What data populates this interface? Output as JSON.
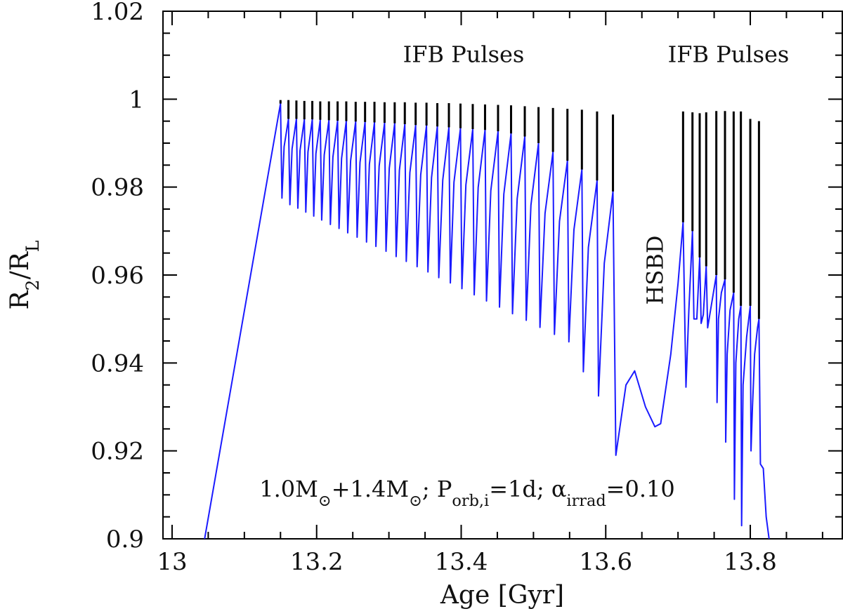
{
  "chart_data": {
    "type": "line",
    "x_label": "Age [Gyr]",
    "y_label": [
      {
        "text": "R"
      },
      {
        "text": "2",
        "sub": true
      },
      {
        "text": "/R"
      },
      {
        "text": "L",
        "sub": true
      }
    ],
    "annotations": [
      "IFB Pulses",
      "IFB Pulses",
      "HSBD"
    ],
    "note": [
      {
        "text": "1.0M"
      },
      {
        "text": "⊙",
        "sub": true
      },
      {
        "text": "+1.4M"
      },
      {
        "text": "⊙",
        "sub": true
      },
      {
        "text": "; P"
      },
      {
        "text": "orb,i",
        "sub": true
      },
      {
        "text": "=1d; "
      },
      {
        "text": "α"
      },
      {
        "text": "irrad",
        "sub": true
      },
      {
        "text": "=0.10"
      }
    ],
    "xlim": [
      12.9874,
      13.9273
    ],
    "ylim": [
      0.9,
      1.02
    ],
    "xticks": [
      13,
      13.2,
      13.4,
      13.6,
      13.8
    ],
    "yticks": [
      0.9,
      0.92,
      0.94,
      0.96,
      0.98,
      1,
      1.02
    ],
    "xminor": [
      13.05,
      13.1,
      13.15,
      13.25,
      13.3,
      13.35,
      13.45,
      13.5,
      13.55,
      13.65,
      13.7,
      13.75,
      13.85,
      13.9
    ],
    "yminor": [
      0.905,
      0.91,
      0.915,
      0.925,
      0.93,
      0.935,
      0.945,
      0.95,
      0.955,
      0.965,
      0.97,
      0.975,
      0.985,
      0.99,
      0.995,
      1.005,
      1.01,
      1.015
    ],
    "series": [
      {
        "color": "#1a1aff",
        "x": [
          13.045,
          13.15,
          13.152,
          13.155,
          13.161,
          13.163,
          13.166,
          13.172,
          13.174,
          13.177,
          13.183,
          13.185,
          13.188,
          13.194,
          13.196,
          13.199,
          13.205,
          13.207,
          13.2105,
          13.217,
          13.219,
          13.2225,
          13.229,
          13.231,
          13.2345,
          13.241,
          13.243,
          13.247,
          13.254,
          13.256,
          13.26,
          13.267,
          13.269,
          13.273,
          13.28,
          13.282,
          13.2865,
          13.294,
          13.296,
          13.3005,
          13.308,
          13.31,
          13.3145,
          13.322,
          13.324,
          13.329,
          13.337,
          13.339,
          13.344,
          13.352,
          13.354,
          13.359,
          13.367,
          13.369,
          13.3745,
          13.383,
          13.385,
          13.39,
          13.399,
          13.401,
          13.4065,
          13.416,
          13.418,
          13.4235,
          13.433,
          13.435,
          13.441,
          13.451,
          13.453,
          13.459,
          13.469,
          13.471,
          13.4775,
          13.488,
          13.49,
          13.4965,
          13.507,
          13.509,
          13.516,
          13.527,
          13.529,
          13.536,
          13.547,
          13.549,
          13.556,
          13.567,
          13.569,
          13.576,
          13.588,
          13.59,
          13.598,
          13.61,
          13.614,
          13.628,
          13.64,
          13.655,
          13.668,
          13.676,
          13.69,
          13.7,
          13.707,
          13.711,
          13.715,
          13.72,
          13.722,
          13.726,
          13.73,
          13.732,
          13.735,
          13.739,
          13.741,
          13.745,
          13.753,
          13.754,
          13.756,
          13.76,
          13.765,
          13.766,
          13.768,
          13.772,
          13.777,
          13.778,
          13.78,
          13.784,
          13.787,
          13.788,
          13.79,
          13.795,
          13.8,
          13.801,
          13.803,
          13.806,
          13.81,
          13.812,
          13.814,
          13.818,
          13.822,
          13.826
        ],
        "values": [
          0.9,
          0.999,
          0.9775,
          0.9892,
          0.9955,
          0.976,
          0.9887,
          0.9955,
          0.9752,
          0.9883,
          0.9954,
          0.9743,
          0.988,
          0.9954,
          0.9734,
          0.9876,
          0.9953,
          0.9725,
          0.9873,
          0.9952,
          0.9715,
          0.9868,
          0.9951,
          0.9706,
          0.9865,
          0.995,
          0.9696,
          0.986,
          0.9949,
          0.9686,
          0.9856,
          0.9948,
          0.9675,
          0.9852,
          0.9947,
          0.9665,
          0.9848,
          0.9946,
          0.9654,
          0.9843,
          0.9945,
          0.9642,
          0.9838,
          0.9943,
          0.9631,
          0.9833,
          0.9941,
          0.9619,
          0.9828,
          0.994,
          0.9607,
          0.9822,
          0.9938,
          0.9594,
          0.9816,
          0.9936,
          0.9582,
          0.9811,
          0.9934,
          0.9569,
          0.9805,
          0.9932,
          0.9555,
          0.9799,
          0.993,
          0.9541,
          0.9792,
          0.9927,
          0.9527,
          0.9784,
          0.9922,
          0.9512,
          0.9774,
          0.9915,
          0.9497,
          0.9759,
          0.99,
          0.9481,
          0.974,
          0.988,
          0.9465,
          0.9722,
          0.986,
          0.9448,
          0.9703,
          0.984,
          0.938,
          0.9663,
          0.9815,
          0.9325,
          0.9627,
          0.979,
          0.919,
          0.935,
          0.9382,
          0.93,
          0.9255,
          0.9262,
          0.942,
          0.958,
          0.972,
          0.9345,
          0.952,
          0.97,
          0.95,
          0.95,
          0.964,
          0.949,
          0.951,
          0.962,
          0.948,
          0.952,
          0.96,
          0.931,
          0.95,
          0.956,
          0.959,
          0.922,
          0.942,
          0.952,
          0.956,
          0.909,
          0.94,
          0.95,
          0.953,
          0.903,
          0.935,
          0.946,
          0.953,
          0.92,
          0.93,
          0.942,
          0.948,
          0.95,
          0.917,
          0.916,
          0.905,
          0.9
        ]
      },
      {
        "color": "#000000",
        "x": [
          13.15,
          13.15,
          null,
          13.161,
          13.161,
          null,
          13.172,
          13.172,
          null,
          13.183,
          13.183,
          null,
          13.194,
          13.194,
          null,
          13.205,
          13.205,
          null,
          13.217,
          13.217,
          null,
          13.229,
          13.229,
          null,
          13.241,
          13.241,
          null,
          13.254,
          13.254,
          null,
          13.267,
          13.267,
          null,
          13.28,
          13.28,
          null,
          13.294,
          13.294,
          null,
          13.308,
          13.308,
          null,
          13.322,
          13.322,
          null,
          13.337,
          13.337,
          null,
          13.352,
          13.352,
          null,
          13.367,
          13.367,
          null,
          13.383,
          13.383,
          null,
          13.399,
          13.399,
          null,
          13.416,
          13.416,
          null,
          13.433,
          13.433,
          null,
          13.451,
          13.451,
          null,
          13.469,
          13.469,
          null,
          13.488,
          13.488,
          null,
          13.507,
          13.507,
          null,
          13.527,
          13.527,
          null,
          13.547,
          13.547,
          null,
          13.567,
          13.567,
          null,
          13.588,
          13.588,
          null,
          13.61,
          13.61,
          null,
          13.707,
          13.707,
          null,
          13.72,
          13.72,
          null,
          13.73,
          13.73,
          null,
          13.739,
          13.739,
          null,
          13.753,
          13.753,
          null,
          13.765,
          13.765,
          null,
          13.777,
          13.777,
          null,
          13.787,
          13.787,
          null,
          13.8,
          13.8,
          null,
          13.812,
          13.812
        ],
        "values": [
          0.999,
          0.9998,
          null,
          0.9955,
          0.9998,
          null,
          0.9955,
          0.9997,
          null,
          0.9954,
          0.9996,
          null,
          0.9954,
          0.9996,
          null,
          0.9953,
          0.9995,
          null,
          0.9952,
          0.9995,
          null,
          0.9951,
          0.9995,
          null,
          0.995,
          0.9995,
          null,
          0.9949,
          0.9994,
          null,
          0.9948,
          0.9994,
          null,
          0.9947,
          0.9994,
          null,
          0.9946,
          0.9993,
          null,
          0.9945,
          0.9993,
          null,
          0.9943,
          0.9993,
          null,
          0.9941,
          0.9992,
          null,
          0.994,
          0.9992,
          null,
          0.9938,
          0.9991,
          null,
          0.9936,
          0.9991,
          null,
          0.9934,
          0.999,
          null,
          0.9932,
          0.9989,
          null,
          0.993,
          0.9988,
          null,
          0.9927,
          0.9987,
          null,
          0.9922,
          0.9986,
          null,
          0.9915,
          0.9984,
          null,
          0.99,
          0.9982,
          null,
          0.988,
          0.998,
          null,
          0.986,
          0.9978,
          null,
          0.984,
          0.9976,
          null,
          0.9815,
          0.9972,
          null,
          0.979,
          0.9965,
          null,
          0.972,
          0.9972,
          null,
          0.97,
          0.997,
          null,
          0.964,
          0.9968,
          null,
          0.962,
          0.997,
          null,
          0.96,
          0.9973,
          null,
          0.959,
          0.9973,
          null,
          0.956,
          0.9972,
          null,
          0.953,
          0.9972,
          null,
          0.953,
          0.9955,
          null,
          0.95,
          0.995
        ]
      }
    ]
  }
}
